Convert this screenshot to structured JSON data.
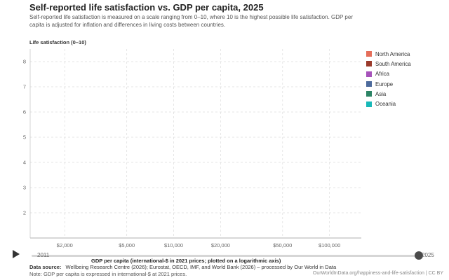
{
  "title": "Self-reported life satisfaction vs. GDP per capita, 2025",
  "subtitle": "Self-reported life satisfaction is measured on a scale ranging from 0–10, where 10 is the highest possible life satisfaction. GDP per capita is adjusted for inflation and differences in living costs between countries.",
  "timeline": {
    "start_year": "2011",
    "end_year": "2025",
    "selected_year": "2025"
  },
  "source": {
    "label": "Data source:",
    "text": "Wellbeing Research Centre (2026); Eurostat, OECD, IMF, and World Bank (2026) – processed by Our World in Data"
  },
  "note": "Note: GDP per capita is expressed in international-$ at 2021 prices.",
  "credit": "OurWorldInData.org/happiness-and-life-satisfaction | CC BY",
  "icons": {
    "play": "play-icon"
  },
  "chart_data": {
    "type": "scatter",
    "title": "Self-reported life satisfaction vs. GDP per capita, 2025",
    "xlabel": "GDP per capita (international-$ in 2021 prices; plotted on a logarithmic axis)",
    "ylabel": "Life satisfaction (0–10)",
    "xscale": "log",
    "xlim": [
      1200,
      160000
    ],
    "ylim": [
      1,
      8.5
    ],
    "xticks": [
      {
        "value": 2000,
        "label": "$2,000"
      },
      {
        "value": 5000,
        "label": "$5,000"
      },
      {
        "value": 10000,
        "label": "$10,000"
      },
      {
        "value": 20000,
        "label": "$20,000"
      },
      {
        "value": 50000,
        "label": "$50,000"
      },
      {
        "value": 100000,
        "label": "$100,000"
      }
    ],
    "yticks": [
      2,
      3,
      4,
      5,
      6,
      7,
      8
    ],
    "grid": true,
    "legend_position": "right",
    "series": [
      {
        "name": "North America",
        "color": "#e56e5a",
        "points": []
      },
      {
        "name": "South America",
        "color": "#9a3a2b",
        "points": []
      },
      {
        "name": "Africa",
        "color": "#a652ba",
        "points": []
      },
      {
        "name": "Europe",
        "color": "#4c6a9c",
        "points": []
      },
      {
        "name": "Asia",
        "color": "#2c8465",
        "points": []
      },
      {
        "name": "Oceania",
        "color": "#18b8b8",
        "points": []
      }
    ]
  }
}
